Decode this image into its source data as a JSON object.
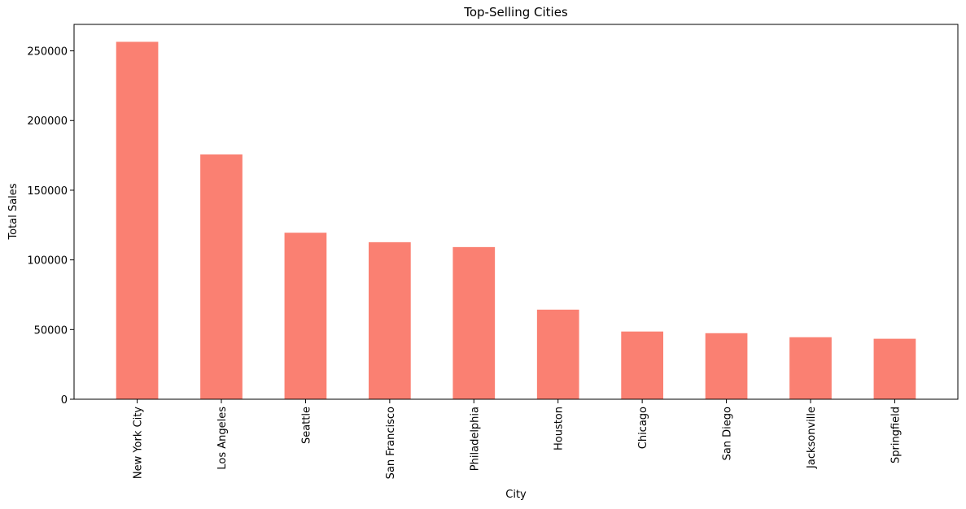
{
  "chart_data": {
    "type": "bar",
    "title": "Top-Selling Cities",
    "xlabel": "City",
    "ylabel": "Total Sales",
    "categories": [
      "New York City",
      "Los Angeles",
      "Seattle",
      "San Francisco",
      "Philadelphia",
      "Houston",
      "Chicago",
      "San Diego",
      "Jacksonville",
      "Springfield"
    ],
    "values": [
      256500,
      175700,
      119500,
      112700,
      109200,
      64300,
      48600,
      47400,
      44500,
      43400
    ],
    "ylim": [
      0,
      269000
    ],
    "yticks": [
      0,
      50000,
      100000,
      150000,
      200000,
      250000
    ],
    "bar_color": "#fa8072",
    "grid": false,
    "legend": "none"
  }
}
